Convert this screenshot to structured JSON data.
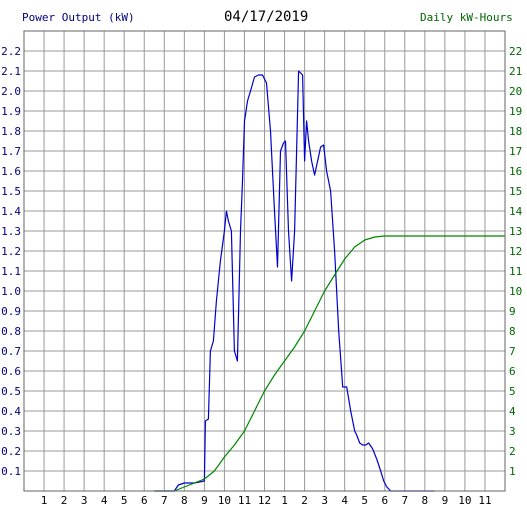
{
  "header": {
    "left_label": "Power Output (kW)",
    "date": "04/17/2019",
    "right_label": "Daily kW-Hours"
  },
  "colors": {
    "power": "#0000cc",
    "energy": "#008800",
    "grid": "#999999",
    "left_axis_text": "#000080",
    "right_axis_text": "#006600"
  },
  "chart_data": {
    "type": "line",
    "x_ticks": [
      "1",
      "2",
      "3",
      "4",
      "5",
      "6",
      "7",
      "8",
      "9",
      "10",
      "11",
      "12",
      "1",
      "2",
      "3",
      "4",
      "5",
      "6",
      "7",
      "8",
      "9",
      "10",
      "11"
    ],
    "xlim": [
      0,
      24
    ],
    "y_left": {
      "label": "Power Output (kW)",
      "lim": [
        0,
        2.3
      ],
      "ticks": [
        0.1,
        0.2,
        0.3,
        0.4,
        0.5,
        0.6,
        0.7,
        0.8,
        0.9,
        1.0,
        1.1,
        1.2,
        1.3,
        1.4,
        1.5,
        1.6,
        1.7,
        1.8,
        1.9,
        2.0,
        2.1,
        2.2
      ]
    },
    "y_right": {
      "label": "Daily kW-Hours",
      "lim": [
        0,
        23
      ],
      "ticks": [
        1,
        2,
        3,
        4,
        5,
        6,
        7,
        8,
        9,
        10,
        11,
        12,
        13,
        14,
        15,
        16,
        17,
        18,
        19,
        20,
        21,
        22
      ]
    },
    "grid": true,
    "series": [
      {
        "axis": "left",
        "x": [
          6.5,
          7.5,
          7.7,
          8.0,
          8.5,
          9.0,
          9.05,
          9.2,
          9.3,
          9.45,
          9.6,
          9.8,
          10.0,
          10.1,
          10.2,
          10.35,
          10.5,
          10.65,
          10.8,
          10.9,
          11.0,
          11.15,
          11.3,
          11.5,
          11.7,
          11.9,
          12.1,
          12.3,
          12.5,
          12.65,
          12.8,
          12.95,
          13.05,
          13.2,
          13.35,
          13.5,
          13.7,
          13.9,
          14.0,
          14.1,
          14.2,
          14.35,
          14.5,
          14.65,
          14.8,
          14.95,
          15.1,
          15.3,
          15.5,
          15.7,
          15.9,
          16.1,
          16.3,
          16.5,
          16.6,
          16.75,
          16.9,
          17.05,
          17.2,
          17.4,
          17.6,
          17.8,
          17.95,
          18.1,
          18.3,
          18.5,
          18.7,
          18.9,
          19.05,
          19.2,
          19.4,
          19.6,
          19.8,
          20.0,
          20.1,
          20.5
        ],
        "y": [
          0.0,
          0.0,
          0.03,
          0.04,
          0.04,
          0.05,
          0.35,
          0.36,
          0.7,
          0.75,
          0.95,
          1.15,
          1.3,
          1.4,
          1.35,
          1.3,
          0.7,
          0.65,
          1.3,
          1.55,
          1.85,
          1.95,
          2.0,
          2.07,
          2.08,
          2.08,
          2.04,
          1.8,
          1.4,
          1.12,
          1.7,
          1.74,
          1.75,
          1.3,
          1.05,
          1.3,
          2.1,
          2.08,
          1.65,
          1.85,
          1.75,
          1.65,
          1.58,
          1.65,
          1.72,
          1.73,
          1.6,
          1.5,
          1.2,
          0.8,
          0.52,
          0.52,
          0.4,
          0.3,
          0.28,
          0.24,
          0.23,
          0.23,
          0.24,
          0.21,
          0.16,
          0.1,
          0.05,
          0.02,
          0.0,
          0.0,
          0.0,
          0.0,
          0.0,
          0.0,
          0.0,
          0.0,
          0.0,
          0.0,
          0.0,
          0.0
        ]
      },
      {
        "axis": "right",
        "x": [
          6.5,
          7.5,
          8.0,
          8.5,
          9.0,
          9.5,
          10.0,
          10.5,
          11.0,
          11.5,
          12.0,
          12.5,
          13.0,
          13.5,
          14.0,
          14.5,
          15.0,
          15.5,
          16.0,
          16.5,
          17.0,
          17.5,
          18.0,
          18.5,
          19.0,
          19.5,
          20.0,
          21.0,
          22.0,
          23.0,
          24.0
        ],
        "y": [
          0.0,
          0.0,
          0.2,
          0.4,
          0.6,
          1.0,
          1.7,
          2.3,
          3.0,
          4.0,
          5.0,
          5.8,
          6.5,
          7.2,
          8.0,
          9.0,
          10.0,
          10.8,
          11.6,
          12.2,
          12.55,
          12.7,
          12.75,
          12.75,
          12.75,
          12.75,
          12.75,
          12.75,
          12.75,
          12.75,
          12.75
        ]
      }
    ]
  }
}
